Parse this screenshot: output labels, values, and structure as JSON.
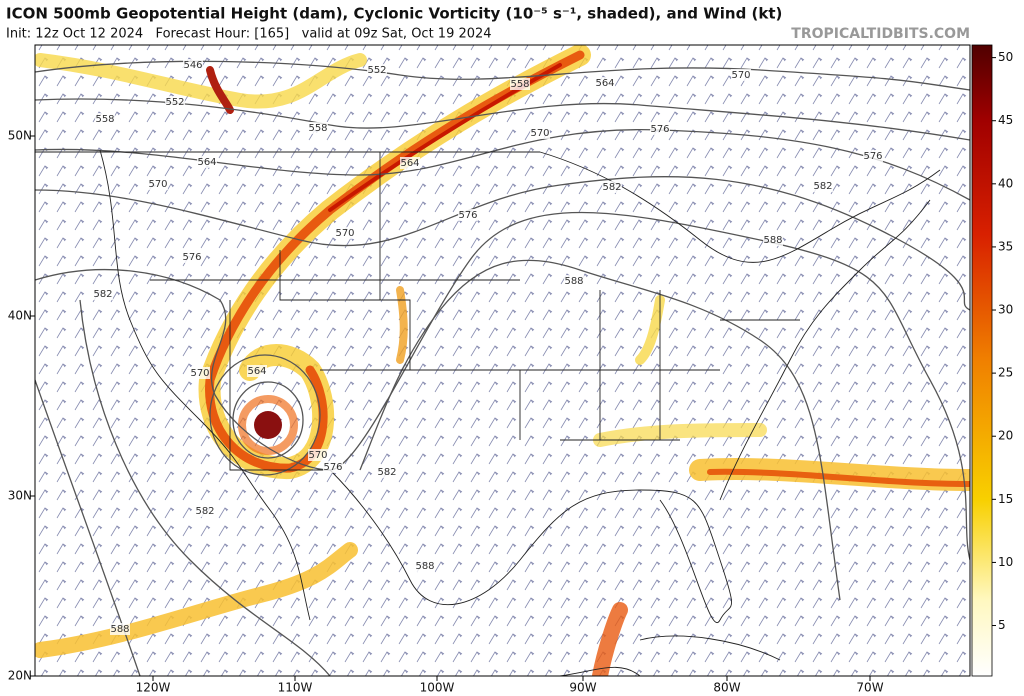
{
  "header": {
    "title": "ICON 500mb Geopotential Height (dam), Cyclonic Vorticity (10⁻⁵ s⁻¹, shaded), and Wind (kt)",
    "subtitle": "Init: 12z Oct 12 2024   Forecast Hour: [165]   valid at 09z Sat, Oct 19 2024",
    "watermark": "TROPICALTIDBITS.COM"
  },
  "map": {
    "latitude_labels": [
      "50N",
      "40N",
      "30N",
      "20N"
    ],
    "longitude_labels": [
      "120W",
      "110W",
      "100W",
      "90W",
      "80W",
      "70W"
    ],
    "contour_labels": [
      546,
      552,
      558,
      552,
      558,
      558,
      564,
      570,
      564,
      570,
      564,
      570,
      576,
      576,
      582,
      582,
      570,
      576,
      576,
      582,
      588,
      588,
      570,
      564,
      570,
      576,
      582,
      582,
      588,
      588
    ]
  },
  "colorbar": {
    "range": [
      1,
      51
    ],
    "ticks": [
      5,
      10,
      15,
      20,
      25,
      30,
      35,
      40,
      45,
      50
    ]
  }
}
